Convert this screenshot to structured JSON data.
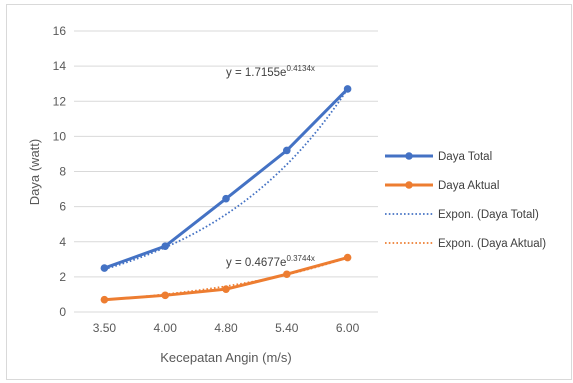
{
  "chart_data": {
    "type": "line",
    "title": "",
    "xlabel": "Kecepatan Angin (m/s)",
    "ylabel": "Daya (watt)",
    "categories": [
      "3.50",
      "4.00",
      "4.80",
      "5.40",
      "6.00"
    ],
    "ylim": [
      0,
      16
    ],
    "yticks": [
      "0",
      "2",
      "4",
      "6",
      "8",
      "10",
      "12",
      "14",
      "16"
    ],
    "grid": "horizontal",
    "legend_position": "right",
    "series": [
      {
        "name": "Daya Total",
        "values": [
          2.5,
          3.75,
          6.45,
          9.2,
          12.7
        ],
        "color": "#4472C4",
        "style": "solid-marker"
      },
      {
        "name": "Daya Aktual",
        "values": [
          0.7,
          0.95,
          1.3,
          2.15,
          3.1
        ],
        "color": "#ED7D31",
        "style": "solid-marker"
      },
      {
        "name": "Expon. (Daya Total)",
        "trend_of": 0,
        "a": 1.7155,
        "b": 0.4134,
        "color": "#4472C4",
        "style": "dotted"
      },
      {
        "name": "Expon. (Daya Aktual)",
        "trend_of": 1,
        "a": 0.4677,
        "b": 0.3744,
        "color": "#ED7D31",
        "style": "dotted"
      }
    ],
    "annotations": [
      {
        "base": "y = 1.7155e",
        "exp": "0.4134x",
        "series": 0
      },
      {
        "base": "y = 0.4677e",
        "exp": "0.3744x",
        "series": 1
      }
    ]
  }
}
